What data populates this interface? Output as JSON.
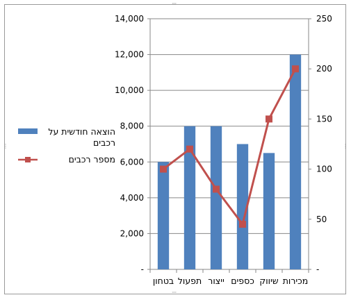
{
  "chart_data": {
    "type": "bar",
    "categories": [
      "מכירות",
      "שיווק",
      "כספים",
      "ייצור",
      "תפעול",
      "בטחון"
    ],
    "series": [
      {
        "name": "הוצאה חודשית על רכבים",
        "type": "bar",
        "axis": "left",
        "color": "#4F81BD",
        "values": [
          12000,
          6500,
          7000,
          8000,
          8000,
          6000
        ]
      },
      {
        "name": "מספר רכבים",
        "type": "line",
        "axis": "right",
        "color": "#C0504D",
        "values": [
          200,
          150,
          45,
          80,
          120,
          100
        ]
      }
    ],
    "y_left": {
      "ylim": [
        0,
        14000
      ],
      "ticks": [
        "14,000",
        "12,000",
        "10,000",
        "8,000",
        "6,000",
        "4,000",
        "2,000",
        "-"
      ]
    },
    "y_right": {
      "ylim": [
        0,
        250
      ],
      "ticks": [
        "250",
        "200",
        "150",
        "100",
        "50",
        "-"
      ]
    },
    "x_order": "right-to-left",
    "grid": true,
    "legend_position": "left"
  },
  "legend": {
    "bar_label": "הוצאה חודשית על רכבים",
    "line_label": "מספר רכבים"
  }
}
